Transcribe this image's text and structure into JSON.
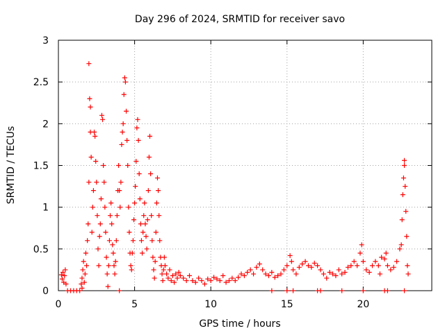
{
  "chart_data": {
    "type": "scatter",
    "title": "Day 296 of 2024, SRMTID for receiver savo",
    "xlabel": "GPS time / hours",
    "ylabel": "SRMTID / TECUs",
    "xlim": [
      0,
      24.5
    ],
    "ylim": [
      0,
      3
    ],
    "x_ticks": [
      0,
      5,
      10,
      15,
      20
    ],
    "y_ticks": [
      0,
      0.5,
      1,
      1.5,
      2,
      2.5,
      3
    ],
    "x_tick_labels": [
      "0",
      "5",
      "10",
      "15",
      "20"
    ],
    "y_tick_labels": [
      "0",
      "0.5",
      "1",
      "1.5",
      "2",
      "2.5",
      "3"
    ],
    "grid": true,
    "marker": "+",
    "color": "#ff0000",
    "series": [
      {
        "name": "savo",
        "points": [
          [
            0.2,
            0.19
          ],
          [
            0.25,
            0.14
          ],
          [
            0.3,
            0.22
          ],
          [
            0.35,
            0.1
          ],
          [
            0.4,
            0.18
          ],
          [
            0.45,
            0.25
          ],
          [
            0.5,
            0.08
          ],
          [
            0.6,
            0.0
          ],
          [
            0.8,
            0.0
          ],
          [
            1.0,
            0.0
          ],
          [
            1.2,
            0.0
          ],
          [
            1.4,
            0.0
          ],
          [
            1.55,
            0.03
          ],
          [
            1.5,
            0.08
          ],
          [
            1.55,
            0.15
          ],
          [
            1.6,
            0.25
          ],
          [
            1.65,
            0.35
          ],
          [
            1.7,
            0.1
          ],
          [
            1.75,
            0.2
          ],
          [
            1.8,
            0.45
          ],
          [
            1.85,
            0.3
          ],
          [
            1.9,
            0.6
          ],
          [
            1.95,
            0.8
          ],
          [
            2.0,
            1.3
          ],
          [
            2.0,
            2.72
          ],
          [
            2.05,
            2.3
          ],
          [
            2.1,
            2.2
          ],
          [
            2.1,
            1.9
          ],
          [
            2.15,
            1.6
          ],
          [
            2.2,
            0.7
          ],
          [
            2.25,
            1.0
          ],
          [
            2.3,
            1.2
          ],
          [
            2.35,
            1.9
          ],
          [
            2.4,
            1.85
          ],
          [
            2.45,
            1.55
          ],
          [
            2.5,
            1.3
          ],
          [
            2.55,
            0.9
          ],
          [
            2.6,
            0.5
          ],
          [
            2.65,
            0.3
          ],
          [
            2.7,
            0.65
          ],
          [
            2.75,
            0.8
          ],
          [
            2.8,
            1.1
          ],
          [
            2.85,
            2.1
          ],
          [
            2.9,
            2.05
          ],
          [
            2.95,
            1.5
          ],
          [
            3.0,
            1.3
          ],
          [
            3.05,
            1.0
          ],
          [
            3.1,
            0.7
          ],
          [
            3.15,
            0.4
          ],
          [
            3.2,
            0.2
          ],
          [
            3.25,
            0.05
          ],
          [
            3.3,
            0.3
          ],
          [
            3.35,
            0.6
          ],
          [
            3.4,
            0.9
          ],
          [
            3.45,
            1.05
          ],
          [
            3.5,
            0.8
          ],
          [
            3.55,
            0.55
          ],
          [
            3.6,
            0.45
          ],
          [
            3.65,
            0.3
          ],
          [
            3.7,
            0.2
          ],
          [
            3.75,
            0.35
          ],
          [
            3.8,
            0.6
          ],
          [
            3.85,
            0.9
          ],
          [
            3.9,
            1.2
          ],
          [
            3.95,
            1.5
          ],
          [
            4.0,
            1.2
          ],
          [
            4.05,
            1.0
          ],
          [
            4.1,
            1.3
          ],
          [
            4.15,
            1.75
          ],
          [
            4.2,
            1.9
          ],
          [
            4.25,
            2.0
          ],
          [
            4.3,
            2.35
          ],
          [
            4.35,
            2.55
          ],
          [
            4.4,
            2.5
          ],
          [
            4.45,
            2.15
          ],
          [
            4.5,
            1.8
          ],
          [
            4.55,
            1.5
          ],
          [
            4.6,
            1.0
          ],
          [
            4.65,
            0.7
          ],
          [
            4.7,
            0.45
          ],
          [
            4.75,
            0.3
          ],
          [
            4.8,
            0.25
          ],
          [
            4.85,
            0.45
          ],
          [
            4.9,
            0.6
          ],
          [
            4.95,
            0.85
          ],
          [
            5.0,
            1.05
          ],
          [
            5.05,
            1.25
          ],
          [
            5.1,
            1.55
          ],
          [
            5.15,
            1.95
          ],
          [
            5.2,
            2.05
          ],
          [
            5.25,
            1.8
          ],
          [
            5.3,
            1.4
          ],
          [
            5.35,
            1.1
          ],
          [
            5.4,
            0.8
          ],
          [
            5.45,
            0.6
          ],
          [
            5.5,
            0.45
          ],
          [
            5.55,
            0.7
          ],
          [
            5.6,
            0.9
          ],
          [
            5.65,
            1.05
          ],
          [
            5.7,
            0.8
          ],
          [
            5.75,
            0.65
          ],
          [
            5.8,
            0.5
          ],
          [
            5.85,
            0.85
          ],
          [
            5.9,
            1.2
          ],
          [
            5.95,
            1.6
          ],
          [
            6.0,
            1.85
          ],
          [
            6.05,
            1.4
          ],
          [
            6.1,
            0.9
          ],
          [
            6.15,
            0.6
          ],
          [
            6.2,
            0.4
          ],
          [
            6.25,
            0.25
          ],
          [
            6.3,
            0.15
          ],
          [
            6.35,
            0.35
          ],
          [
            6.4,
            0.7
          ],
          [
            6.45,
            1.05
          ],
          [
            6.5,
            1.35
          ],
          [
            6.55,
            1.2
          ],
          [
            6.6,
            0.9
          ],
          [
            6.65,
            0.6
          ],
          [
            6.7,
            0.4
          ],
          [
            6.75,
            0.3
          ],
          [
            6.8,
            0.2
          ],
          [
            6.85,
            0.12
          ],
          [
            6.9,
            0.25
          ],
          [
            6.95,
            0.4
          ],
          [
            7.0,
            0.3
          ],
          [
            7.1,
            0.2
          ],
          [
            7.2,
            0.15
          ],
          [
            7.3,
            0.25
          ],
          [
            7.4,
            0.12
          ],
          [
            7.5,
            0.18
          ],
          [
            7.6,
            0.1
          ],
          [
            7.7,
            0.2
          ],
          [
            7.8,
            0.15
          ],
          [
            7.9,
            0.22
          ],
          [
            8.0,
            0.18
          ],
          [
            8.2,
            0.15
          ],
          [
            8.4,
            0.12
          ],
          [
            8.6,
            0.18
          ],
          [
            8.8,
            0.12
          ],
          [
            9.0,
            0.1
          ],
          [
            9.2,
            0.15
          ],
          [
            9.4,
            0.12
          ],
          [
            9.6,
            0.08
          ],
          [
            9.8,
            0.14
          ],
          [
            10.0,
            0.12
          ],
          [
            10.2,
            0.16
          ],
          [
            10.4,
            0.14
          ],
          [
            10.6,
            0.12
          ],
          [
            10.8,
            0.18
          ],
          [
            11.0,
            0.1
          ],
          [
            11.2,
            0.12
          ],
          [
            11.4,
            0.15
          ],
          [
            11.6,
            0.12
          ],
          [
            11.8,
            0.16
          ],
          [
            12.0,
            0.2
          ],
          [
            12.2,
            0.18
          ],
          [
            12.4,
            0.22
          ],
          [
            12.6,
            0.25
          ],
          [
            12.8,
            0.2
          ],
          [
            13.0,
            0.28
          ],
          [
            13.2,
            0.32
          ],
          [
            13.4,
            0.25
          ],
          [
            13.6,
            0.2
          ],
          [
            13.8,
            0.18
          ],
          [
            14.0,
            0.22
          ],
          [
            14.2,
            0.16
          ],
          [
            14.4,
            0.18
          ],
          [
            14.6,
            0.2
          ],
          [
            14.8,
            0.25
          ],
          [
            15.0,
            0.3
          ],
          [
            15.2,
            0.42
          ],
          [
            15.3,
            0.35
          ],
          [
            15.4,
            0.25
          ],
          [
            15.6,
            0.2
          ],
          [
            15.8,
            0.28
          ],
          [
            16.0,
            0.32
          ],
          [
            16.2,
            0.35
          ],
          [
            16.4,
            0.3
          ],
          [
            16.6,
            0.28
          ],
          [
            16.8,
            0.33
          ],
          [
            17.0,
            0.3
          ],
          [
            17.2,
            0.25
          ],
          [
            17.4,
            0.2
          ],
          [
            17.6,
            0.15
          ],
          [
            17.8,
            0.22
          ],
          [
            18.0,
            0.2
          ],
          [
            18.2,
            0.18
          ],
          [
            18.4,
            0.25
          ],
          [
            18.6,
            0.2
          ],
          [
            18.8,
            0.22
          ],
          [
            19.0,
            0.28
          ],
          [
            19.2,
            0.3
          ],
          [
            19.4,
            0.35
          ],
          [
            19.6,
            0.3
          ],
          [
            19.8,
            0.45
          ],
          [
            19.9,
            0.55
          ],
          [
            20.0,
            0.35
          ],
          [
            20.2,
            0.25
          ],
          [
            20.4,
            0.22
          ],
          [
            20.6,
            0.3
          ],
          [
            20.8,
            0.35
          ],
          [
            21.0,
            0.3
          ],
          [
            21.1,
            0.2
          ],
          [
            21.2,
            0.4
          ],
          [
            21.4,
            0.38
          ],
          [
            21.5,
            0.45
          ],
          [
            21.6,
            0.3
          ],
          [
            21.8,
            0.25
          ],
          [
            22.0,
            0.28
          ],
          [
            22.2,
            0.35
          ],
          [
            22.4,
            0.5
          ],
          [
            22.5,
            0.55
          ],
          [
            22.55,
            0.85
          ],
          [
            22.6,
            1.15
          ],
          [
            22.65,
            1.35
          ],
          [
            22.7,
            1.5
          ],
          [
            22.7,
            1.56
          ],
          [
            22.75,
            1.25
          ],
          [
            22.8,
            0.95
          ],
          [
            22.85,
            0.65
          ],
          [
            22.9,
            0.3
          ],
          [
            22.95,
            0.2
          ],
          [
            4.0,
            0.0
          ],
          [
            14.0,
            0.0
          ],
          [
            15.0,
            0.0
          ],
          [
            15.4,
            0.0
          ],
          [
            17.0,
            0.0
          ],
          [
            17.2,
            0.0
          ],
          [
            18.6,
            0.0
          ],
          [
            20.0,
            0.0
          ],
          [
            21.4,
            0.0
          ],
          [
            21.6,
            0.0
          ],
          [
            22.7,
            0.0
          ]
        ]
      }
    ]
  }
}
